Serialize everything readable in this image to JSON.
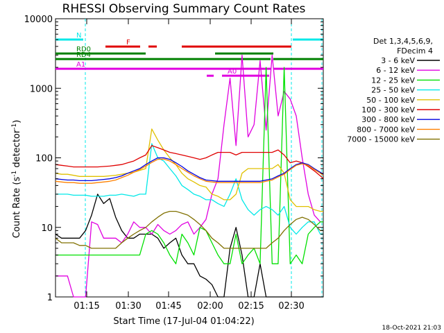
{
  "chart_data": {
    "type": "line",
    "title": "RHESSI Observing Summary Count Rates",
    "xlabel": "Start Time (17-Jul-04 01:04:22)",
    "ylabel_main": "Count Rate (s",
    "ylabel_sup": "-1",
    "ylabel_rest": " detector",
    "ylabel_sup2": "-1",
    "ylabel_end": ")",
    "yscale": "log",
    "ylim": [
      1,
      10000
    ],
    "xlim_minutes": [
      0,
      79.6
    ],
    "x_ticks": [
      {
        "m": 10.6,
        "label": "01:15"
      },
      {
        "m": 25.6,
        "label": "01:30"
      },
      {
        "m": 40.6,
        "label": "01:45"
      },
      {
        "m": 55.6,
        "label": "02:00"
      },
      {
        "m": 70.6,
        "label": "02:15"
      },
      {
        "m": 85.6,
        "label": "02:30"
      }
    ],
    "y_ticks": [
      {
        "v": 1,
        "label": "1"
      },
      {
        "v": 10,
        "label": "10"
      },
      {
        "v": 100,
        "label": "100"
      },
      {
        "v": 1000,
        "label": "1000"
      },
      {
        "v": 10000,
        "label": "10000"
      }
    ],
    "legend": {
      "header1": "Det 1,3,4,5,6,9,",
      "header2": "FDecim 4",
      "position": "right"
    },
    "series": [
      {
        "name": "3 - 6 keV",
        "color": "#000000",
        "x": [
          0,
          2,
          4,
          6,
          8,
          10,
          12,
          14,
          16,
          18,
          20,
          22,
          24,
          26,
          28,
          30,
          32,
          34,
          36,
          38,
          40,
          42,
          44,
          46,
          48,
          50,
          52,
          54,
          56,
          58,
          60,
          62,
          64,
          66,
          68,
          70,
          72,
          74,
          76,
          78,
          80,
          82,
          84,
          86,
          88,
          89
        ],
        "y": [
          8,
          7,
          7,
          7,
          7,
          9,
          15,
          30,
          22,
          26,
          14,
          9,
          7,
          7,
          8,
          8,
          8,
          7,
          5,
          6,
          7,
          4,
          3,
          3,
          2,
          1.8,
          1.5,
          1,
          1,
          5,
          10,
          4,
          1,
          1,
          3,
          1,
          1,
          1,
          1,
          1,
          1,
          1,
          1,
          1,
          1,
          1
        ]
      },
      {
        "name": "6 - 12 keV",
        "color": "#e000e0",
        "x": [
          0,
          2,
          4,
          6,
          8,
          10,
          12,
          14,
          16,
          18,
          20,
          22,
          24,
          26,
          28,
          30,
          32,
          34,
          36,
          38,
          40,
          42,
          44,
          46,
          48,
          50,
          52,
          54,
          56,
          58,
          60,
          62,
          64,
          66,
          68,
          70,
          72,
          74,
          76,
          78,
          80,
          82,
          84,
          86,
          88,
          89
        ],
        "y": [
          2,
          2,
          2,
          1,
          1,
          1,
          12,
          11,
          7,
          7,
          7,
          6,
          8,
          12,
          10,
          10,
          8,
          11,
          9,
          8,
          9,
          11,
          12,
          8,
          10,
          13,
          30,
          50,
          300,
          1400,
          150,
          3000,
          200,
          300,
          2500,
          250,
          3000,
          400,
          900,
          700,
          400,
          100,
          30,
          15,
          12,
          12
        ]
      },
      {
        "name": "12 - 25 keV",
        "color": "#00e000",
        "x": [
          0,
          2,
          4,
          6,
          8,
          10,
          12,
          14,
          16,
          18,
          20,
          22,
          24,
          26,
          28,
          30,
          32,
          34,
          36,
          38,
          40,
          42,
          44,
          46,
          48,
          50,
          52,
          54,
          56,
          58,
          60,
          62,
          64,
          66,
          68,
          70,
          72,
          74,
          76,
          78,
          80,
          82,
          84,
          86,
          88,
          89
        ],
        "y": [
          4,
          4,
          4,
          4,
          4,
          4,
          4,
          4,
          4,
          4,
          4,
          4,
          4,
          4,
          4,
          8,
          9,
          8,
          6,
          4,
          3,
          8,
          6,
          4,
          10,
          9,
          6,
          4,
          3,
          3,
          8,
          3,
          4,
          5,
          3,
          2000,
          3,
          3,
          2000,
          3,
          4,
          3,
          8,
          10,
          12,
          12
        ]
      },
      {
        "name": "25 - 50 keV",
        "color": "#00e8e8",
        "x": [
          0,
          2,
          4,
          6,
          8,
          10,
          12,
          14,
          16,
          18,
          20,
          22,
          24,
          26,
          28,
          30,
          32,
          34,
          36,
          38,
          40,
          42,
          44,
          46,
          48,
          50,
          52,
          54,
          56,
          58,
          60,
          62,
          64,
          66,
          68,
          70,
          72,
          74,
          76,
          78,
          80,
          82,
          84,
          86,
          88,
          89
        ],
        "y": [
          30,
          30,
          30,
          29,
          29,
          29,
          28,
          28,
          28,
          29,
          29,
          30,
          29,
          28,
          30,
          30,
          160,
          100,
          90,
          70,
          55,
          40,
          35,
          30,
          28,
          25,
          25,
          22,
          20,
          30,
          50,
          25,
          18,
          15,
          18,
          20,
          18,
          15,
          20,
          10,
          8,
          10,
          12,
          12,
          8,
          8
        ]
      },
      {
        "name": "50 - 100 keV",
        "color": "#e0c000",
        "x": [
          0,
          2,
          4,
          6,
          8,
          10,
          12,
          14,
          16,
          18,
          20,
          22,
          24,
          26,
          28,
          30,
          32,
          34,
          36,
          38,
          40,
          42,
          44,
          46,
          48,
          50,
          52,
          54,
          56,
          58,
          60,
          62,
          64,
          66,
          68,
          70,
          72,
          74,
          76,
          78,
          80,
          82,
          84,
          86,
          88,
          89
        ],
        "y": [
          60,
          58,
          58,
          56,
          54,
          54,
          54,
          54,
          54,
          55,
          56,
          58,
          60,
          62,
          66,
          70,
          260,
          180,
          130,
          100,
          80,
          60,
          50,
          45,
          40,
          38,
          30,
          28,
          25,
          25,
          30,
          60,
          70,
          70,
          70,
          70,
          70,
          80,
          60,
          25,
          20,
          20,
          20,
          18,
          17,
          17
        ]
      },
      {
        "name": "100 - 300 keV",
        "color": "#e00000",
        "x": [
          0,
          2,
          4,
          6,
          8,
          10,
          12,
          14,
          16,
          18,
          20,
          22,
          24,
          26,
          28,
          30,
          32,
          34,
          36,
          38,
          40,
          42,
          44,
          46,
          48,
          50,
          52,
          54,
          56,
          58,
          60,
          62,
          64,
          66,
          68,
          70,
          72,
          74,
          76,
          78,
          80,
          82,
          84,
          86,
          88,
          89
        ],
        "y": [
          80,
          78,
          76,
          74,
          74,
          74,
          74,
          74,
          75,
          76,
          78,
          80,
          85,
          90,
          100,
          110,
          150,
          140,
          130,
          120,
          115,
          110,
          105,
          100,
          95,
          100,
          110,
          120,
          120,
          120,
          110,
          120,
          120,
          120,
          120,
          120,
          120,
          130,
          110,
          85,
          90,
          85,
          75,
          65,
          55,
          50
        ]
      },
      {
        "name": "300 - 800 keV",
        "color": "#0000e0",
        "x": [
          0,
          2,
          4,
          6,
          8,
          10,
          12,
          14,
          16,
          18,
          20,
          22,
          24,
          26,
          28,
          30,
          32,
          34,
          36,
          38,
          40,
          42,
          44,
          46,
          48,
          50,
          52,
          54,
          56,
          58,
          60,
          62,
          64,
          66,
          68,
          70,
          72,
          74,
          76,
          78,
          80,
          82,
          84,
          86,
          88,
          89
        ],
        "y": [
          50,
          49,
          48,
          48,
          47,
          47,
          47,
          48,
          49,
          50,
          52,
          55,
          60,
          65,
          70,
          80,
          90,
          100,
          100,
          95,
          85,
          75,
          65,
          58,
          52,
          48,
          47,
          46,
          46,
          46,
          46,
          46,
          46,
          46,
          46,
          48,
          50,
          55,
          60,
          70,
          80,
          85,
          80,
          70,
          62,
          58
        ]
      },
      {
        "name": "800 - 7000 keV",
        "color": "#ff8000",
        "x": [
          0,
          2,
          4,
          6,
          8,
          10,
          12,
          14,
          16,
          18,
          20,
          22,
          24,
          26,
          28,
          30,
          32,
          34,
          36,
          38,
          40,
          42,
          44,
          46,
          48,
          50,
          52,
          54,
          56,
          58,
          60,
          62,
          64,
          66,
          68,
          70,
          72,
          74,
          76,
          78,
          80,
          82,
          84,
          86,
          88,
          89
        ],
        "y": [
          46,
          45,
          44,
          44,
          43,
          43,
          43,
          44,
          45,
          46,
          48,
          52,
          56,
          62,
          68,
          76,
          86,
          95,
          96,
          90,
          80,
          70,
          62,
          55,
          50,
          46,
          45,
          44,
          44,
          44,
          44,
          44,
          44,
          44,
          44,
          46,
          48,
          53,
          58,
          68,
          78,
          82,
          78,
          68,
          60,
          56
        ]
      },
      {
        "name": "7000 - 15000 keV",
        "color": "#807000",
        "x": [
          0,
          2,
          4,
          6,
          8,
          10,
          12,
          14,
          16,
          18,
          20,
          22,
          24,
          26,
          28,
          30,
          32,
          34,
          36,
          38,
          40,
          42,
          44,
          46,
          48,
          50,
          52,
          54,
          56,
          58,
          60,
          62,
          64,
          66,
          68,
          70,
          72,
          74,
          76,
          78,
          80,
          82,
          84,
          86,
          88,
          89
        ],
        "y": [
          7,
          6,
          6,
          6,
          5.5,
          5.5,
          5,
          5,
          5,
          5,
          5,
          6,
          7,
          8,
          9,
          10,
          12,
          14,
          16,
          17,
          17,
          16,
          15,
          13,
          11,
          9,
          7,
          6,
          5,
          5,
          5,
          5,
          5,
          5,
          5,
          5,
          6,
          7,
          9,
          11,
          13,
          14,
          13,
          11,
          9,
          9
        ]
      }
    ],
    "flags": [
      {
        "label": "N",
        "color": "#00e8e8",
        "y_frac": 0.05
      },
      {
        "label": "F",
        "color": "#e00000",
        "y_frac": 0.075
      },
      {
        "label": "RD0",
        "color": "#008000",
        "y_frac": 0.1
      },
      {
        "label": "RD4",
        "color": "#008000",
        "y_frac": 0.12
      },
      {
        "label": "A1",
        "color": "#e000e0",
        "y_frac": 0.155
      },
      {
        "label": "A0",
        "color": "#e000e0",
        "y_frac": 0.18
      }
    ]
  },
  "footer": {
    "date_stamp": "18-Oct-2021 21:03"
  }
}
